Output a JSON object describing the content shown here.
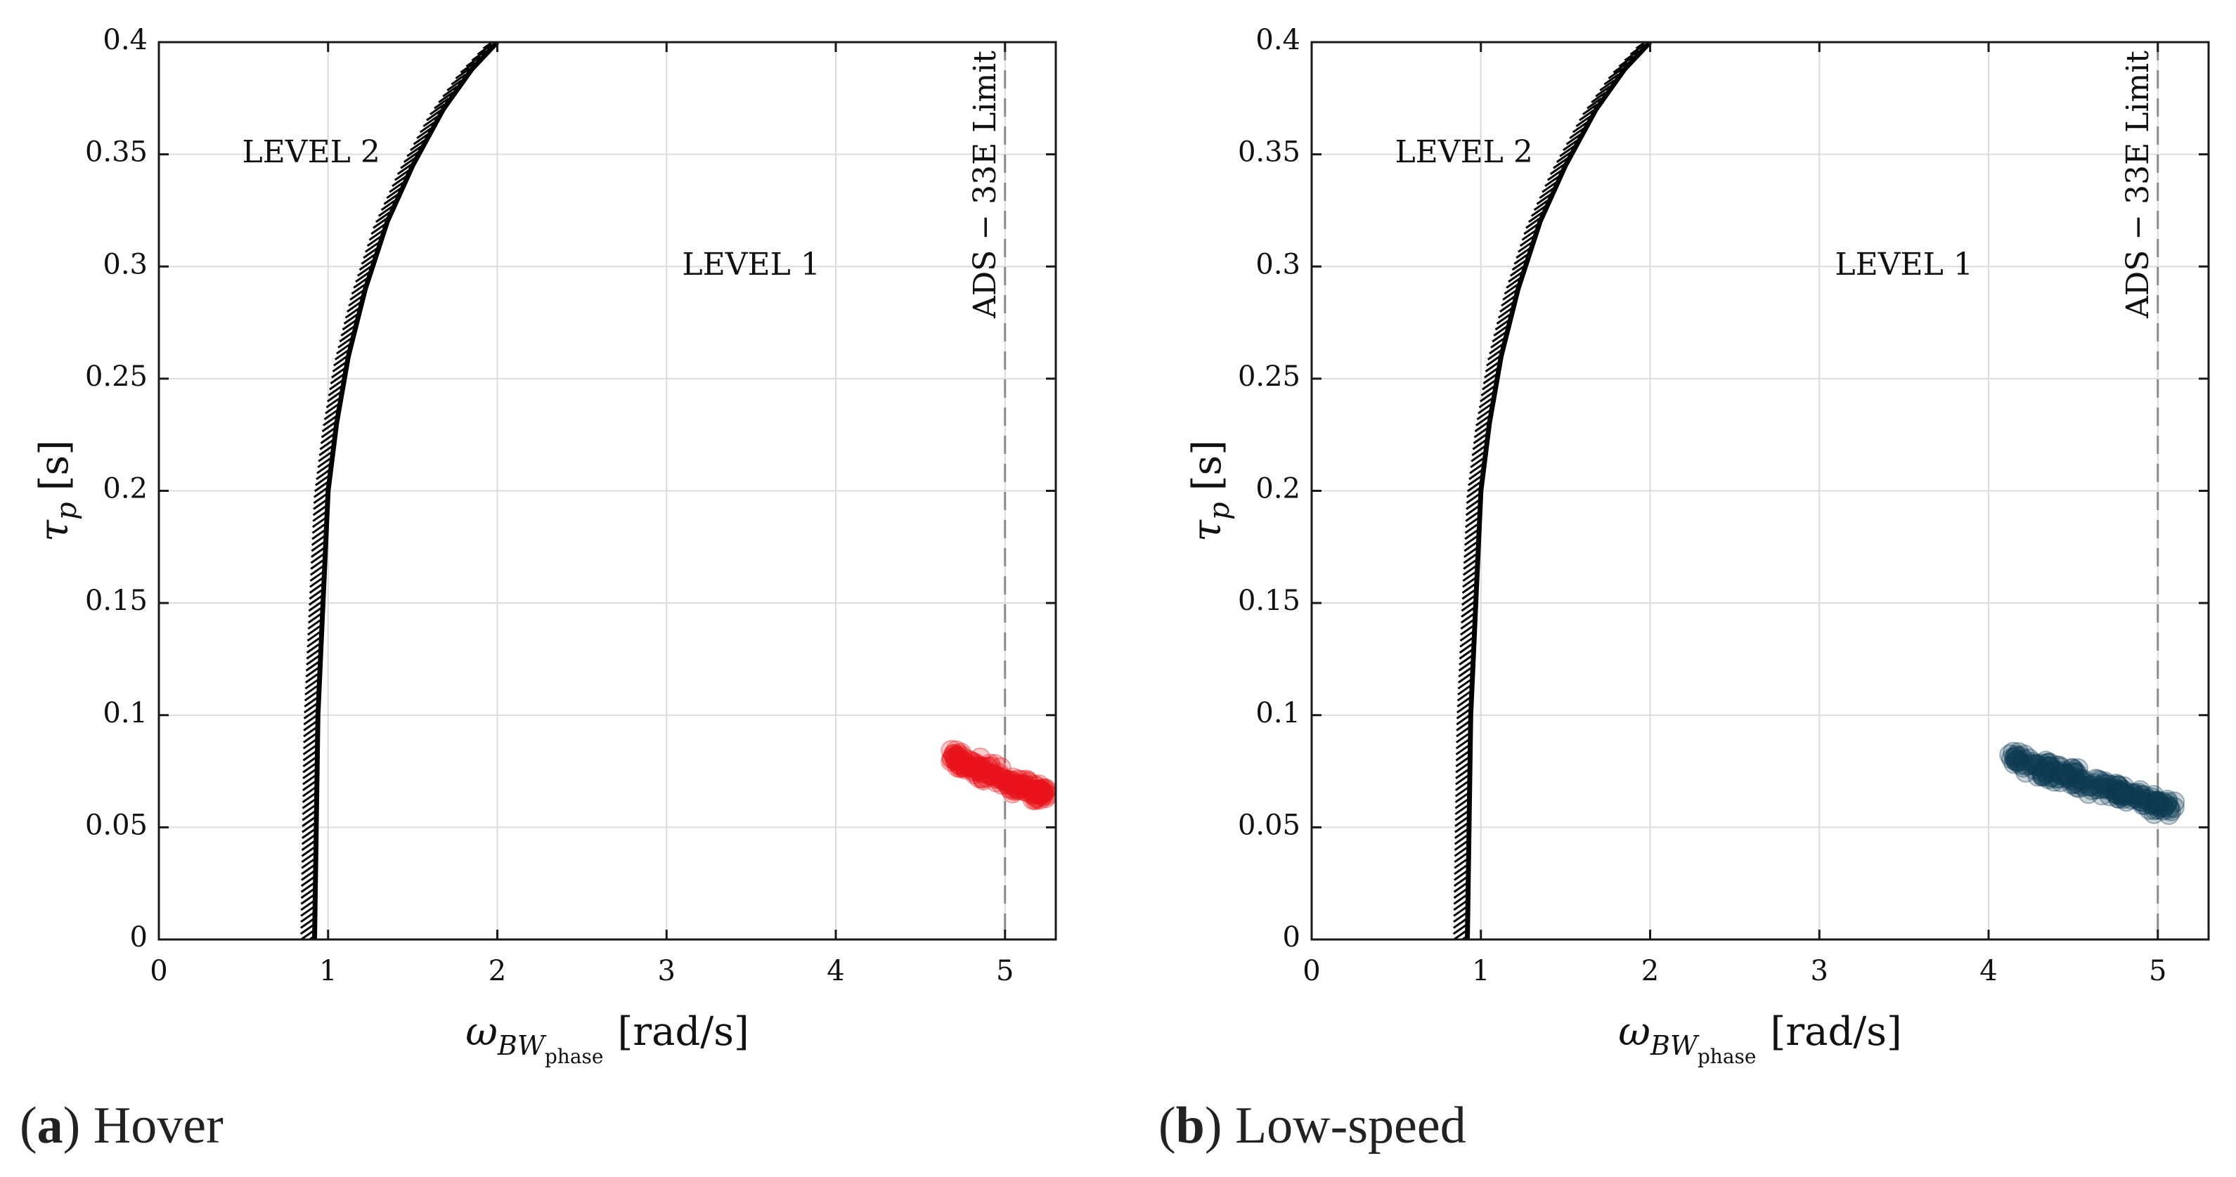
{
  "chart_data": [
    {
      "type": "scatter",
      "panel_letter": "a",
      "caption": "Hover",
      "xlabel_main": "ω",
      "xlabel_sub": "BW",
      "xlabel_subsub": "phase",
      "xlabel_units": "[rad/s]",
      "ylabel_main": "τ",
      "ylabel_sub": "p",
      "ylabel_units": "[s]",
      "xlim": [
        0,
        5.3
      ],
      "ylim": [
        0,
        0.4
      ],
      "xticks": [
        0,
        1,
        2,
        3,
        4,
        5
      ],
      "yticks": [
        0,
        0.05,
        0.1,
        0.15,
        0.2,
        0.25,
        0.3,
        0.35,
        0.4
      ],
      "ytick_labels": [
        "0",
        "0.05",
        "0.1",
        "0.15",
        "0.2",
        "0.25",
        "0.3",
        "0.35",
        "0.4"
      ],
      "grid": true,
      "boundary": {
        "name": "Level 1/Level 2 boundary",
        "x": [
          0.92,
          0.93,
          0.94,
          0.97,
          1.0,
          1.05,
          1.12,
          1.22,
          1.35,
          1.5,
          1.68,
          1.85,
          2.0
        ],
        "y": [
          0.0,
          0.05,
          0.1,
          0.15,
          0.2,
          0.23,
          0.26,
          0.29,
          0.32,
          0.345,
          0.37,
          0.388,
          0.4
        ]
      },
      "limit_line": {
        "x": 5.0,
        "label": "ADS − 33E Limit"
      },
      "region_labels": [
        {
          "text": "LEVEL 2",
          "x": 0.9,
          "y": 0.35
        },
        {
          "text": "LEVEL 1",
          "x": 3.5,
          "y": 0.3
        }
      ],
      "scatter": {
        "color": "#e8141b",
        "x_range": [
          4.68,
          5.25
        ],
        "y_at_x_start": 0.081,
        "y_at_x_end": 0.064,
        "spread": 0.004,
        "count": 160
      }
    },
    {
      "type": "scatter",
      "panel_letter": "b",
      "caption": "Low-speed",
      "xlabel_main": "ω",
      "xlabel_sub": "BW",
      "xlabel_subsub": "phase",
      "xlabel_units": "[rad/s]",
      "ylabel_main": "τ",
      "ylabel_sub": "p",
      "ylabel_units": "[s]",
      "xlim": [
        0,
        5.3
      ],
      "ylim": [
        0,
        0.4
      ],
      "xticks": [
        0,
        1,
        2,
        3,
        4,
        5
      ],
      "yticks": [
        0,
        0.05,
        0.1,
        0.15,
        0.2,
        0.25,
        0.3,
        0.35,
        0.4
      ],
      "ytick_labels": [
        "0",
        "0.05",
        "0.1",
        "0.15",
        "0.2",
        "0.25",
        "0.3",
        "0.35",
        "0.4"
      ],
      "grid": true,
      "boundary": {
        "name": "Level 1/Level 2 boundary",
        "x": [
          0.92,
          0.93,
          0.94,
          0.97,
          1.0,
          1.05,
          1.12,
          1.22,
          1.35,
          1.5,
          1.68,
          1.85,
          2.0
        ],
        "y": [
          0.0,
          0.05,
          0.1,
          0.15,
          0.2,
          0.23,
          0.26,
          0.29,
          0.32,
          0.345,
          0.37,
          0.388,
          0.4
        ]
      },
      "limit_line": {
        "x": 5.0,
        "label": "ADS − 33E Limit"
      },
      "region_labels": [
        {
          "text": "LEVEL 2",
          "x": 0.9,
          "y": 0.35
        },
        {
          "text": "LEVEL 1",
          "x": 3.5,
          "y": 0.3
        }
      ],
      "scatter": {
        "color": "#0c3a52",
        "x_range": [
          4.12,
          5.1
        ],
        "y_at_x_start": 0.081,
        "y_at_x_end": 0.058,
        "spread": 0.004,
        "count": 200
      }
    }
  ]
}
